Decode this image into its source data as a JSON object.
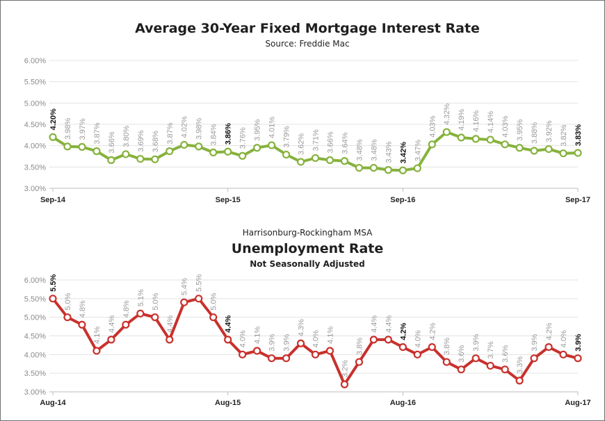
{
  "chart_data": [
    {
      "type": "line",
      "title": "Average 30-Year Fixed Mortgage Interest Rate",
      "subtitle": "Source: Freddie Mac",
      "color": "#86b23c",
      "yticks": [
        "3.00%",
        "3.50%",
        "4.00%",
        "4.50%",
        "5.00%",
        "5.50%",
        "6.00%"
      ],
      "ylim": [
        3.0,
        6.0
      ],
      "xlabels": [
        "Sep-14",
        "Sep-15",
        "Sep-16",
        "Sep-17"
      ],
      "x": [
        "Sep-14",
        "Oct-14",
        "Nov-14",
        "Dec-14",
        "Jan-15",
        "Feb-15",
        "Mar-15",
        "Apr-15",
        "May-15",
        "Jun-15",
        "Jul-15",
        "Aug-15",
        "Sep-15",
        "Oct-15",
        "Nov-15",
        "Dec-15",
        "Jan-16",
        "Feb-16",
        "Mar-16",
        "Apr-16",
        "May-16",
        "Jun-16",
        "Jul-16",
        "Aug-16",
        "Sep-16",
        "Oct-16",
        "Nov-16",
        "Dec-16",
        "Jan-17",
        "Feb-17",
        "Mar-17",
        "Apr-17",
        "May-17",
        "Jun-17",
        "Jul-17",
        "Aug-17",
        "Sep-17"
      ],
      "values": [
        4.2,
        3.98,
        3.97,
        3.87,
        3.66,
        3.8,
        3.69,
        3.68,
        3.87,
        4.02,
        3.98,
        3.84,
        3.86,
        3.76,
        3.95,
        4.01,
        3.79,
        3.62,
        3.71,
        3.66,
        3.64,
        3.48,
        3.48,
        3.43,
        3.42,
        3.47,
        4.03,
        4.32,
        4.19,
        4.16,
        4.14,
        4.03,
        3.95,
        3.88,
        3.92,
        3.82,
        3.83
      ],
      "labels": [
        "4.20%",
        "3.98%",
        "3.97%",
        "3.87%",
        "3.66%",
        "3.80%",
        "3.69%",
        "3.68%",
        "3.87%",
        "4.02%",
        "3.98%",
        "3.84%",
        "3.86%",
        "3.76%",
        "3.95%",
        "4.01%",
        "3.79%",
        "3.62%",
        "3.71%",
        "3.66%",
        "3.64%",
        "3.48%",
        "3.48%",
        "3.43%",
        "3.42%",
        "3.47%",
        "4.03%",
        "4.32%",
        "4.19%",
        "4.16%",
        "4.14%",
        "4.03%",
        "3.95%",
        "3.88%",
        "3.92%",
        "3.82%",
        "3.83%"
      ],
      "bold_indices": [
        0,
        12,
        24,
        36
      ],
      "grid": true
    },
    {
      "type": "line",
      "supertitle": "Harrisonburg-Rockingham MSA",
      "title": "Unemployment Rate",
      "subtitle": "Not Seasonally Adjusted",
      "color": "#c9302c",
      "yticks": [
        "3.00%",
        "3.50%",
        "4.00%",
        "4.50%",
        "5.00%",
        "5.50%",
        "6.00%"
      ],
      "ylim": [
        3.0,
        6.0
      ],
      "xlabels": [
        "Aug-14",
        "Aug-15",
        "Aug-16",
        "Aug-17"
      ],
      "x": [
        "Aug-14",
        "Sep-14",
        "Oct-14",
        "Nov-14",
        "Dec-14",
        "Jan-15",
        "Feb-15",
        "Mar-15",
        "Apr-15",
        "May-15",
        "Jun-15",
        "Jul-15",
        "Aug-15",
        "Sep-15",
        "Oct-15",
        "Nov-15",
        "Dec-15",
        "Jan-16",
        "Feb-16",
        "Mar-16",
        "Apr-16",
        "May-16",
        "Jun-16",
        "Jul-16",
        "Aug-16",
        "Sep-16",
        "Oct-16",
        "Nov-16",
        "Dec-16",
        "Jan-17",
        "Feb-17",
        "Mar-17",
        "Apr-17",
        "May-17",
        "Jun-17",
        "Jul-17",
        "Aug-17"
      ],
      "values": [
        5.5,
        5.0,
        4.8,
        4.1,
        4.4,
        4.8,
        5.1,
        5.0,
        4.4,
        5.4,
        5.5,
        5.0,
        4.4,
        4.0,
        4.1,
        3.9,
        3.9,
        4.3,
        4.0,
        4.1,
        3.2,
        3.8,
        4.4,
        4.4,
        4.2,
        4.0,
        4.2,
        3.8,
        3.6,
        3.9,
        3.7,
        3.6,
        3.3,
        3.9,
        4.2,
        4.0,
        3.9
      ],
      "labels": [
        "5.5%",
        "5.0%",
        "4.8%",
        "4.1%",
        "4.4%",
        "4.8%",
        "5.1%",
        "5.0%",
        "4.4%",
        "5.4%",
        "5.5%",
        "5.0%",
        "4.4%",
        "4.0%",
        "4.1%",
        "3.9%",
        "3.9%",
        "4.3%",
        "4.0%",
        "4.1%",
        "3.2%",
        "3.8%",
        "4.4%",
        "4.4%",
        "4.2%",
        "4.0%",
        "4.2%",
        "3.8%",
        "3.6%",
        "3.9%",
        "3.7%",
        "3.6%",
        "3.3%",
        "3.9%",
        "4.2%",
        "4.0%",
        "3.9%"
      ],
      "bold_indices": [
        0,
        12,
        24,
        36
      ],
      "grid": true
    }
  ]
}
